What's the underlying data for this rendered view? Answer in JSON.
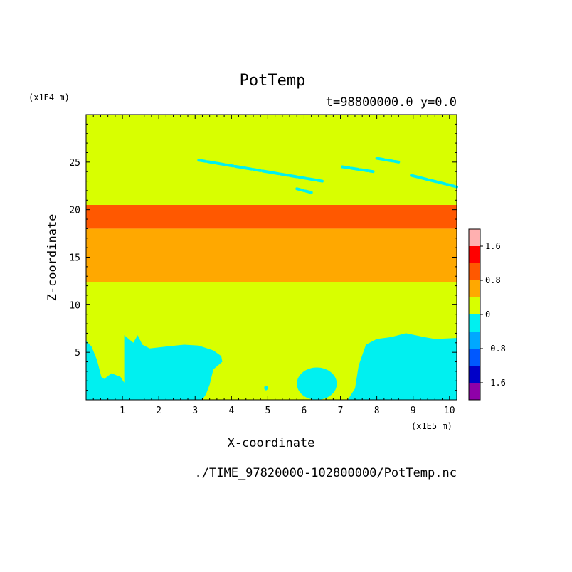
{
  "chart_data": {
    "type": "heatmap",
    "title": "PotTemp",
    "subtitle": "t=98800000.0 y=0.0",
    "xlabel": "X-coordinate",
    "ylabel": "Z-coordinate",
    "x_unit": "(x1E5 m)",
    "y_unit": "(x1E4 m)",
    "source": "./TIME_97820000-102800000/PotTemp.nc",
    "xlim": [
      0,
      10.2
    ],
    "ylim": [
      0,
      30
    ],
    "x_ticks": [
      "1",
      "2",
      "3",
      "4",
      "5",
      "6",
      "7",
      "8",
      "9",
      "10"
    ],
    "y_ticks": [
      "5",
      "10",
      "15",
      "20",
      "25"
    ],
    "colorbar": {
      "levels": [
        -2.0,
        -1.6,
        -1.2,
        -0.8,
        -0.4,
        0,
        0.4,
        0.8,
        1.2,
        1.6,
        2.0
      ],
      "colors": [
        "#8f00a8",
        "#0000c8",
        "#0058ff",
        "#00a8ff",
        "#00f0f0",
        "#d8ff00",
        "#ffa800",
        "#ff5800",
        "#ff0000",
        "#ffb0b0"
      ],
      "labels": [
        "1.6",
        "0.8",
        "0",
        "-0.8",
        "-1.6"
      ]
    },
    "bands": [
      {
        "z_from": 0,
        "z_to": 12.4,
        "value": 0.2
      },
      {
        "z_from": 12.4,
        "z_to": 18.0,
        "value": 0.6
      },
      {
        "z_from": 18.0,
        "z_to": 20.5,
        "value": 1.0
      },
      {
        "z_from": 20.5,
        "z_to": 30.0,
        "value": 0.2
      }
    ],
    "negative_region_low_z": {
      "value": -0.2,
      "boundary": [
        [
          0,
          6.2
        ],
        [
          0.15,
          5.6
        ],
        [
          0.3,
          4.2
        ],
        [
          0.42,
          2.4
        ],
        [
          0.5,
          2.2
        ],
        [
          0.7,
          2.8
        ],
        [
          0.95,
          2.4
        ],
        [
          1.05,
          1.8
        ],
        [
          1.05,
          6.8
        ],
        [
          1.3,
          6.0
        ],
        [
          1.42,
          6.8
        ],
        [
          1.55,
          5.8
        ],
        [
          1.75,
          5.4
        ],
        [
          2.2,
          5.6
        ],
        [
          2.7,
          5.8
        ],
        [
          3.1,
          5.7
        ],
        [
          3.5,
          5.2
        ],
        [
          3.72,
          4.6
        ],
        [
          3.75,
          4.0
        ],
        [
          3.5,
          3.2
        ],
        [
          3.4,
          1.6
        ],
        [
          3.3,
          0.6
        ],
        [
          3.2,
          0.0
        ],
        [
          0,
          0
        ]
      ]
    },
    "negative_region_right": {
      "value": -0.2,
      "boundary": [
        [
          7.2,
          0.0
        ],
        [
          7.4,
          1.2
        ],
        [
          7.5,
          3.6
        ],
        [
          7.7,
          5.8
        ],
        [
          8.0,
          6.4
        ],
        [
          8.4,
          6.6
        ],
        [
          8.8,
          7.0
        ],
        [
          9.3,
          6.6
        ],
        [
          9.6,
          6.4
        ],
        [
          10.2,
          6.5
        ],
        [
          10.2,
          0
        ],
        [
          7.2,
          0
        ]
      ]
    },
    "negative_patches": [
      {
        "x": [
          5.8,
          6.9
        ],
        "z": [
          0.0,
          3.4
        ]
      },
      {
        "x": [
          4.9,
          5.0
        ],
        "z": [
          1.0,
          1.5
        ]
      },
      {
        "x": [
          3.1,
          3.4
        ],
        "z": [
          4.0,
          5.0
        ]
      }
    ],
    "negative_streaks_upper": [
      {
        "x": [
          3.1,
          6.5
        ],
        "z": [
          23.0,
          25.2
        ]
      },
      {
        "x": [
          7.05,
          7.9
        ],
        "z": [
          24.0,
          24.5
        ]
      },
      {
        "x": [
          8.0,
          8.6
        ],
        "z": [
          25.0,
          25.4
        ]
      },
      {
        "x": [
          8.95,
          10.2
        ],
        "z": [
          22.4,
          23.6
        ]
      },
      {
        "x": [
          5.8,
          6.2
        ],
        "z": [
          21.8,
          22.2
        ]
      }
    ]
  }
}
